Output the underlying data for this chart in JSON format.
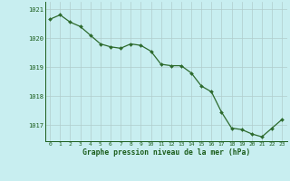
{
  "hours": [
    0,
    1,
    2,
    3,
    4,
    5,
    6,
    7,
    8,
    9,
    10,
    11,
    12,
    13,
    14,
    15,
    16,
    17,
    18,
    19,
    20,
    21,
    22,
    23
  ],
  "pressure": [
    1020.65,
    1020.8,
    1020.55,
    1020.4,
    1020.1,
    1019.8,
    1019.7,
    1019.65,
    1019.8,
    1019.75,
    1019.55,
    1019.1,
    1019.05,
    1019.05,
    1018.8,
    1018.35,
    1018.15,
    1017.45,
    1016.9,
    1016.85,
    1016.7,
    1016.6,
    1016.9,
    1017.2
  ],
  "ylim": [
    1016.45,
    1021.25
  ],
  "yticks": [
    1017,
    1018,
    1019,
    1020,
    1021
  ],
  "xticks": [
    0,
    1,
    2,
    3,
    4,
    5,
    6,
    7,
    8,
    9,
    10,
    11,
    12,
    13,
    14,
    15,
    16,
    17,
    18,
    19,
    20,
    21,
    22,
    23
  ],
  "line_color": "#2d6a2d",
  "bg_color": "#c8eef0",
  "grid_color": "#b0cccc",
  "xlabel": "Graphe pression niveau de la mer (hPa)",
  "xlabel_color": "#1a5c1a",
  "tick_color": "#1a5c1a",
  "marker": "D",
  "marker_size": 2.0,
  "line_width": 0.9
}
